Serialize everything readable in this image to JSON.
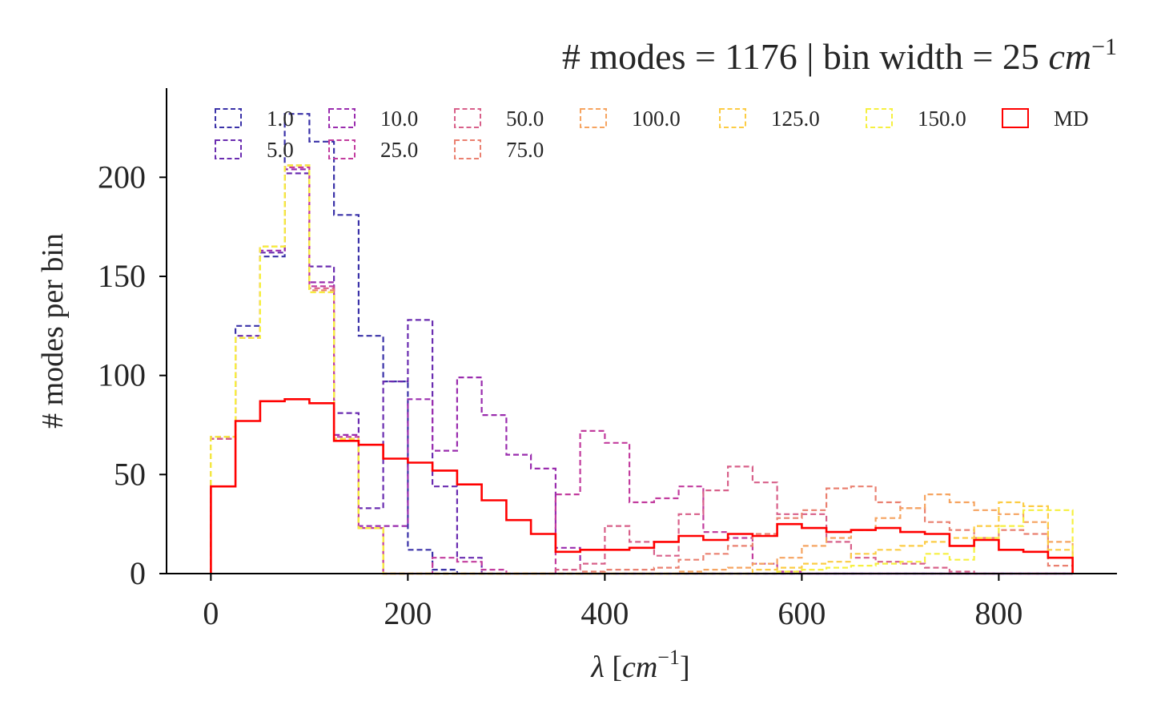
{
  "chart_data": {
    "type": "histogram",
    "title": "# modes = 1176 | bin width = 25",
    "title_unit": "cm",
    "title_unit_exp": "−1",
    "xlabel_symbol": "λ",
    "xlabel_unit": "cm",
    "xlabel_unit_exp": "−1",
    "ylabel": "# modes per bin",
    "xlim": [
      -45,
      920
    ],
    "ylim": [
      0,
      245
    ],
    "x_ticks": [
      "0",
      "200",
      "400",
      "600",
      "800"
    ],
    "y_ticks": [
      "0",
      "50",
      "100",
      "150",
      "200"
    ],
    "legend_position": "top",
    "bin_edges": [
      0,
      25,
      50,
      75,
      100,
      125,
      150,
      175,
      200,
      225,
      250,
      275,
      300,
      325,
      350,
      375,
      400,
      425,
      450,
      475,
      500,
      525,
      550,
      575,
      600,
      625,
      650,
      675,
      700,
      725,
      750,
      775,
      800,
      825,
      850,
      875
    ],
    "series": [
      {
        "name": "1.0",
        "color": "#3a32a8",
        "dashed": true,
        "values": [
          69,
          125,
          160,
          232,
          218,
          181,
          120,
          97,
          12,
          2,
          0,
          0,
          0,
          0,
          0,
          0,
          0,
          0,
          0,
          0,
          0,
          0,
          0,
          0,
          0,
          0,
          0,
          0,
          0,
          0,
          0,
          0,
          0,
          0,
          0
        ]
      },
      {
        "name": "5.0",
        "color": "#6a2cb0",
        "dashed": true,
        "values": [
          68,
          120,
          162,
          202,
          155,
          81,
          33,
          97,
          128,
          44,
          8,
          0,
          0,
          0,
          0,
          0,
          0,
          0,
          0,
          0,
          0,
          0,
          0,
          0,
          0,
          0,
          0,
          0,
          0,
          0,
          0,
          0,
          0,
          0,
          0
        ]
      },
      {
        "name": "10.0",
        "color": "#9a2cae",
        "dashed": true,
        "values": [
          68,
          119,
          163,
          204,
          147,
          70,
          24,
          24,
          88,
          62,
          99,
          80,
          60,
          53,
          13,
          0,
          0,
          0,
          0,
          0,
          0,
          0,
          0,
          0,
          0,
          0,
          0,
          0,
          0,
          0,
          0,
          0,
          0,
          0,
          0
        ]
      },
      {
        "name": "25.0",
        "color": "#c23c9e",
        "dashed": true,
        "values": [
          68,
          119,
          165,
          205,
          145,
          69,
          23,
          0,
          0,
          8,
          6,
          2,
          0,
          0,
          40,
          72,
          66,
          36,
          38,
          44,
          21,
          18,
          5,
          1,
          0,
          0,
          0,
          0,
          0,
          0,
          0,
          0,
          0,
          0,
          0
        ]
      },
      {
        "name": "50.0",
        "color": "#d8608a",
        "dashed": true,
        "values": [
          68,
          119,
          165,
          206,
          144,
          68,
          23,
          0,
          0,
          0,
          0,
          0,
          0,
          0,
          2,
          5,
          24,
          16,
          9,
          30,
          42,
          54,
          46,
          30,
          30,
          16,
          8,
          6,
          5,
          3,
          1,
          0,
          0,
          0,
          0
        ]
      },
      {
        "name": "75.0",
        "color": "#ea8070",
        "dashed": true,
        "values": [
          69,
          119,
          165,
          206,
          143,
          68,
          23,
          0,
          0,
          0,
          0,
          0,
          0,
          0,
          0,
          1,
          2,
          2,
          3,
          7,
          10,
          14,
          20,
          28,
          32,
          43,
          44,
          36,
          33,
          26,
          22,
          18,
          22,
          20,
          4
        ]
      },
      {
        "name": "100.0",
        "color": "#f6a460",
        "dashed": true,
        "values": [
          69,
          119,
          165,
          206,
          142,
          68,
          23,
          0,
          0,
          0,
          0,
          0,
          0,
          0,
          0,
          0,
          0,
          0,
          0,
          1,
          2,
          3,
          5,
          8,
          14,
          18,
          22,
          28,
          33,
          40,
          36,
          32,
          30,
          26,
          16
        ]
      },
      {
        "name": "125.0",
        "color": "#fccc44",
        "dashed": true,
        "values": [
          69,
          119,
          165,
          206,
          142,
          68,
          23,
          0,
          0,
          0,
          0,
          0,
          0,
          0,
          0,
          0,
          0,
          0,
          0,
          0,
          0,
          0,
          2,
          3,
          5,
          6,
          10,
          12,
          14,
          16,
          18,
          24,
          36,
          34,
          12
        ]
      },
      {
        "name": "150.0",
        "color": "#f6f040",
        "dashed": true,
        "values": [
          69,
          119,
          165,
          206,
          142,
          68,
          23,
          0,
          0,
          0,
          0,
          0,
          0,
          0,
          0,
          0,
          0,
          0,
          0,
          0,
          0,
          0,
          0,
          1,
          2,
          3,
          4,
          5,
          6,
          10,
          7,
          18,
          24,
          32,
          32
        ]
      },
      {
        "name": "MD",
        "color": "#ff0000",
        "dashed": false,
        "values": [
          44,
          77,
          87,
          88,
          86,
          67,
          65,
          58,
          56,
          52,
          45,
          37,
          27,
          20,
          11,
          12,
          12,
          13,
          16,
          19,
          17,
          20,
          19,
          25,
          23,
          21,
          22,
          23,
          21,
          20,
          14,
          17,
          12,
          11,
          8
        ]
      }
    ]
  }
}
